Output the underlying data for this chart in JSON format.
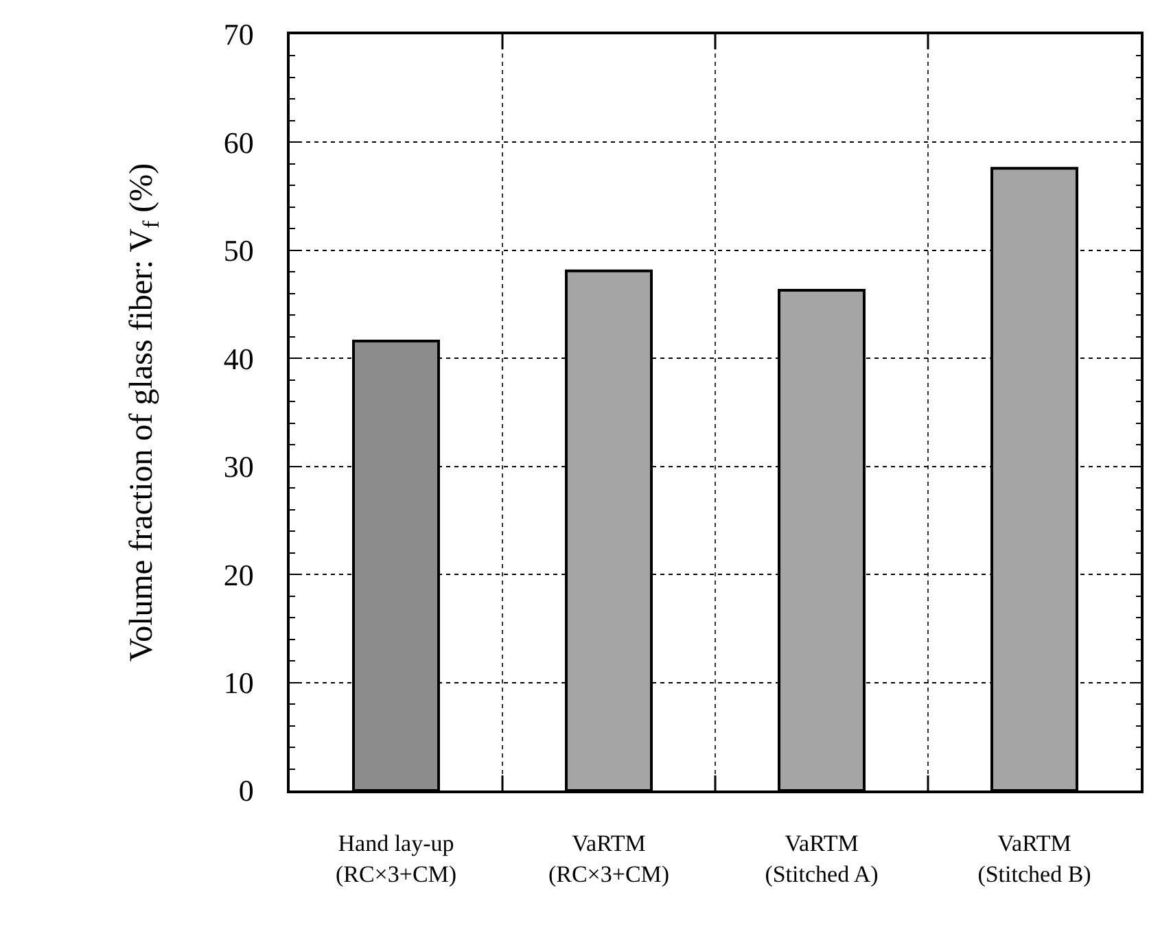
{
  "chart_data": {
    "type": "bar",
    "ylabel": "Volume fraction of glass fiber: V$_{f}$ (%)",
    "categories": [
      "Hand lay-up\n(RC×3+CM)",
      "VaRTM\n(RC×3+CM)",
      "VaRTM\n(Stitched A)",
      "VaRTM\n(Stitched B)"
    ],
    "values": [
      41.6,
      48.1,
      46.3,
      57.6
    ],
    "colors": [
      "#8c8c8c",
      "#a5a5a5",
      "#a5a5a5",
      "#a5a5a5"
    ],
    "ylim": [
      0,
      70
    ],
    "yticks": [
      0,
      10,
      20,
      30,
      40,
      50,
      60,
      70
    ],
    "grid": true
  }
}
